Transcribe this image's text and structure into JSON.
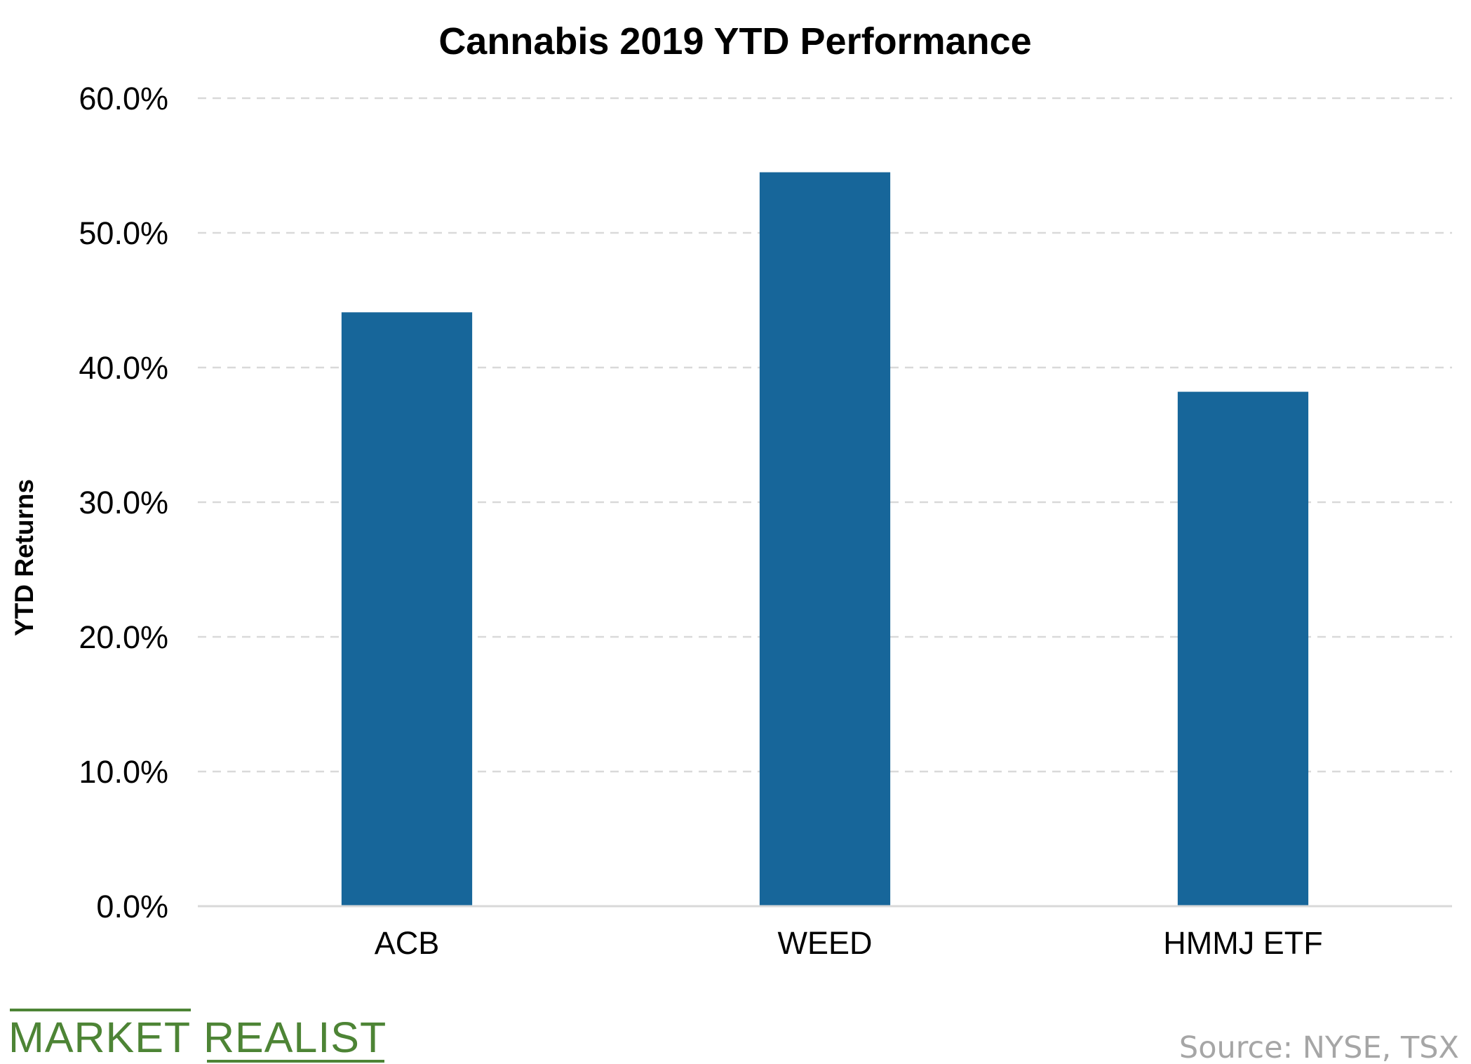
{
  "chart_data": {
    "type": "bar",
    "title": "Cannabis 2019 YTD Performance",
    "xlabel": "",
    "ylabel": "YTD Returns",
    "categories": [
      "ACB",
      "WEED",
      "HMMJ ETF"
    ],
    "values": [
      44.1,
      54.5,
      38.2
    ],
    "ylim": [
      0,
      60
    ],
    "yticks": [
      0,
      10,
      20,
      30,
      40,
      50,
      60
    ],
    "ytick_labels": [
      "0.0%",
      "10.0%",
      "20.0%",
      "30.0%",
      "40.0%",
      "50.0%",
      "60.0%"
    ],
    "grid": true,
    "legend": "none",
    "bar_color": "#17669a"
  },
  "branding": {
    "logo_text_1": "MARKET",
    "logo_text_2": "REALIST",
    "logo_color": "#4d8435"
  },
  "source": "Source: NYSE, TSX"
}
